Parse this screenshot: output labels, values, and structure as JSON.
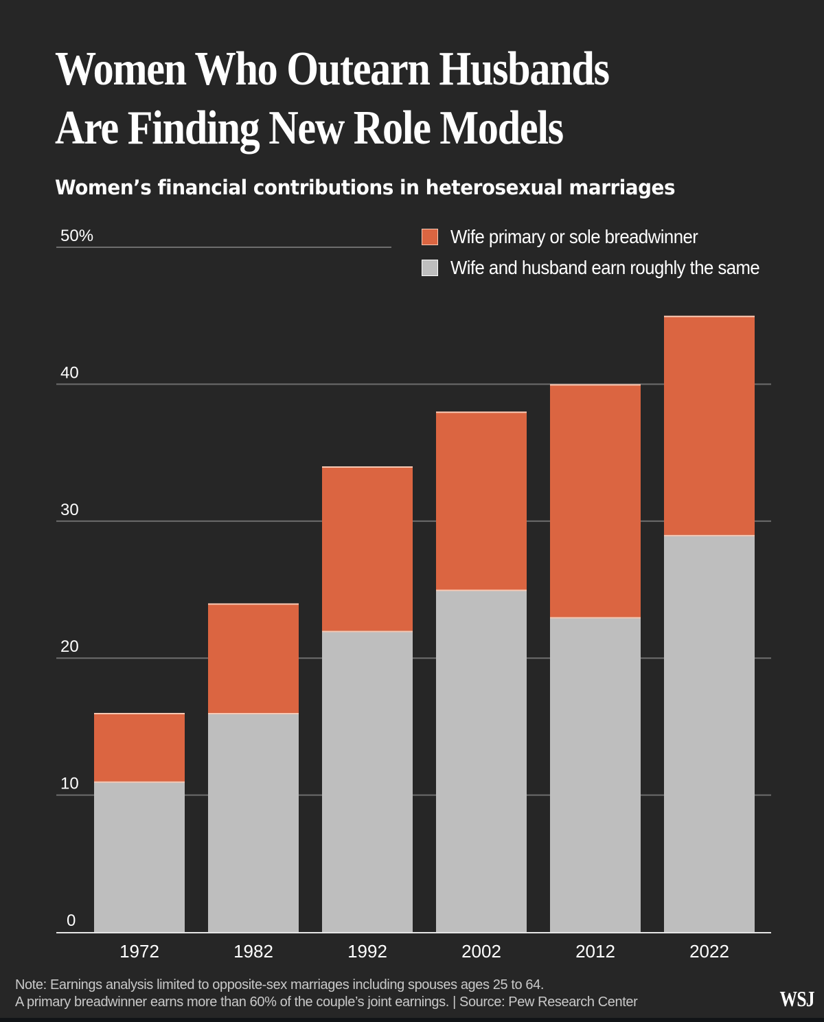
{
  "header": {
    "title_line1": "Women Who Outearn Husbands",
    "title_line2": "Are Finding New Role Models",
    "subtitle": "Women’s financial contributions in heterosexual marriages"
  },
  "footer": {
    "note_line1": "Note: Earnings analysis limited to opposite-sex marriages including spouses ages 25 to 64.",
    "note_line2": "A primary breadwinner earns more than 60% of the couple’s joint earnings. | Source: Pew Research Center",
    "logo": "WSJ"
  },
  "colors": {
    "background": "#262626",
    "primary_breadwinner": "#DB6541",
    "roughly_same": "#BEBEBE",
    "gridline": "#6E6E6E",
    "separator": "#F8C9B4"
  },
  "chart_data": {
    "type": "bar",
    "stacked": true,
    "title": "Women’s financial contributions in heterosexual marriages",
    "xlabel": "",
    "ylabel": "",
    "categories": [
      "1972",
      "1982",
      "1992",
      "2002",
      "2012",
      "2022"
    ],
    "series": [
      {
        "name": "Wife and husband earn roughly the same",
        "color": "#BEBEBE",
        "values": [
          11,
          16,
          22,
          25,
          23,
          29
        ]
      },
      {
        "name": "Wife primary or sole breadwinner",
        "color": "#DB6541",
        "values": [
          5,
          8,
          12,
          13,
          17,
          16
        ]
      }
    ],
    "ylim": [
      0,
      50
    ],
    "yticks": [
      0,
      10,
      20,
      30,
      40,
      50
    ],
    "ytick_labels": [
      "0",
      "10",
      "20",
      "30",
      "40",
      "50%"
    ],
    "grid": true,
    "legend": [
      {
        "label": "Wife primary or sole breadwinner",
        "color": "#DB6541"
      },
      {
        "label": "Wife and husband earn roughly the same",
        "color": "#BEBEBE"
      }
    ],
    "legend_position": "top-right"
  }
}
